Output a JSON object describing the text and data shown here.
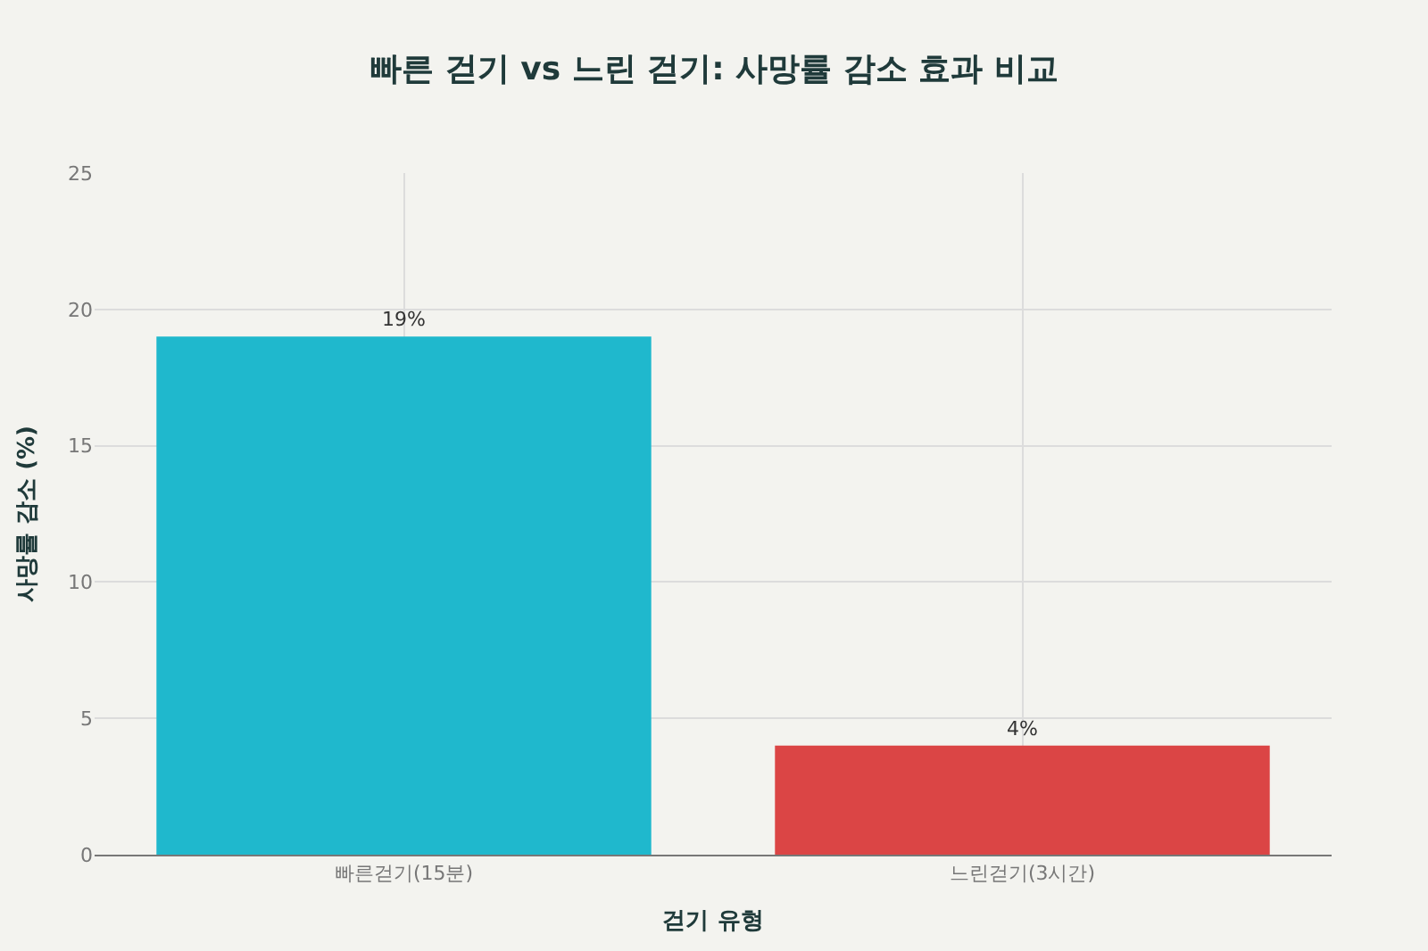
{
  "chart_data": {
    "type": "bar",
    "title": "빠른 걷기 vs 느린 걷기: 사망률 감소 효과 비교",
    "xlabel": "걷기 유형",
    "ylabel": "사망률 감소 (%)",
    "categories": [
      "빠른걷기(15분)",
      "느린걷기(3시간)"
    ],
    "values": [
      19,
      4
    ],
    "colors": [
      "#1fb8cd",
      "#db4545"
    ],
    "value_labels": [
      "19%",
      "4%"
    ],
    "ylim": [
      0,
      25
    ],
    "yticks": [
      0,
      5,
      10,
      15,
      20,
      25
    ],
    "grid": true
  }
}
